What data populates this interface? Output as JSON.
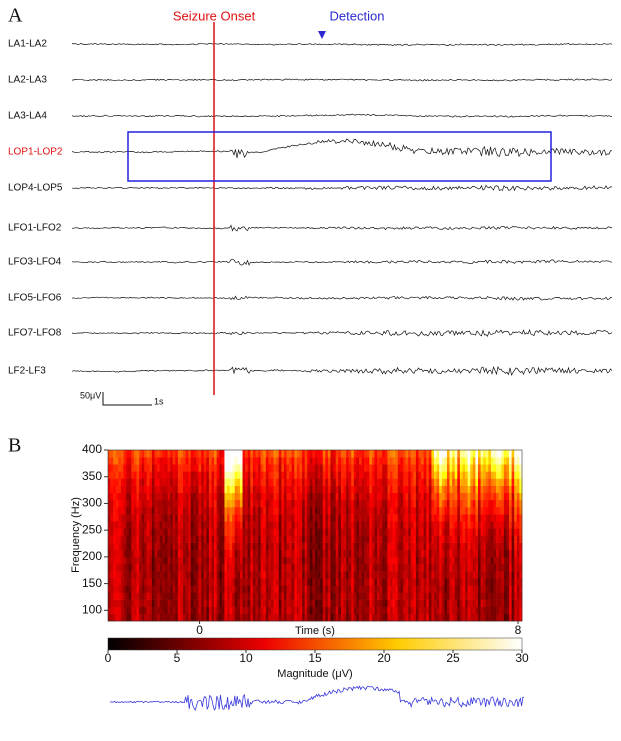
{
  "panel_a": {
    "label": "A",
    "onset_label": "Seizure Onset",
    "detection_label": "Detection",
    "channels": [
      "LA1-LA2",
      "LA2-LA3",
      "LA3-LA4",
      "LOP1-LOP2",
      "LOP4-LOP5",
      "LFO1-LFO2",
      "LFO3-LFO4",
      "LFO5-LFO6",
      "LFO7-LFO8",
      "LF2-LF3"
    ],
    "highlight_index": 3,
    "scale_amplitude": "50μV",
    "scale_time": "1s"
  },
  "chart_data": {
    "type": "spectrogram",
    "panel_label": "B",
    "xlabel": "Time (s)",
    "ylabel": "Frequency (Hz)",
    "xlim": [
      -2.3,
      8.1
    ],
    "xticks": [
      0,
      8
    ],
    "ylim": [
      80,
      400
    ],
    "yticks": [
      100,
      150,
      200,
      250,
      300,
      350,
      400
    ],
    "colormap": "hot",
    "colorbar_label": "Magnitude (μV)",
    "colorbar_lim": [
      0,
      30
    ],
    "colorbar_ticks": [
      0,
      5,
      10,
      15,
      20,
      25,
      30
    ],
    "trace_color": "#3a3adb"
  }
}
